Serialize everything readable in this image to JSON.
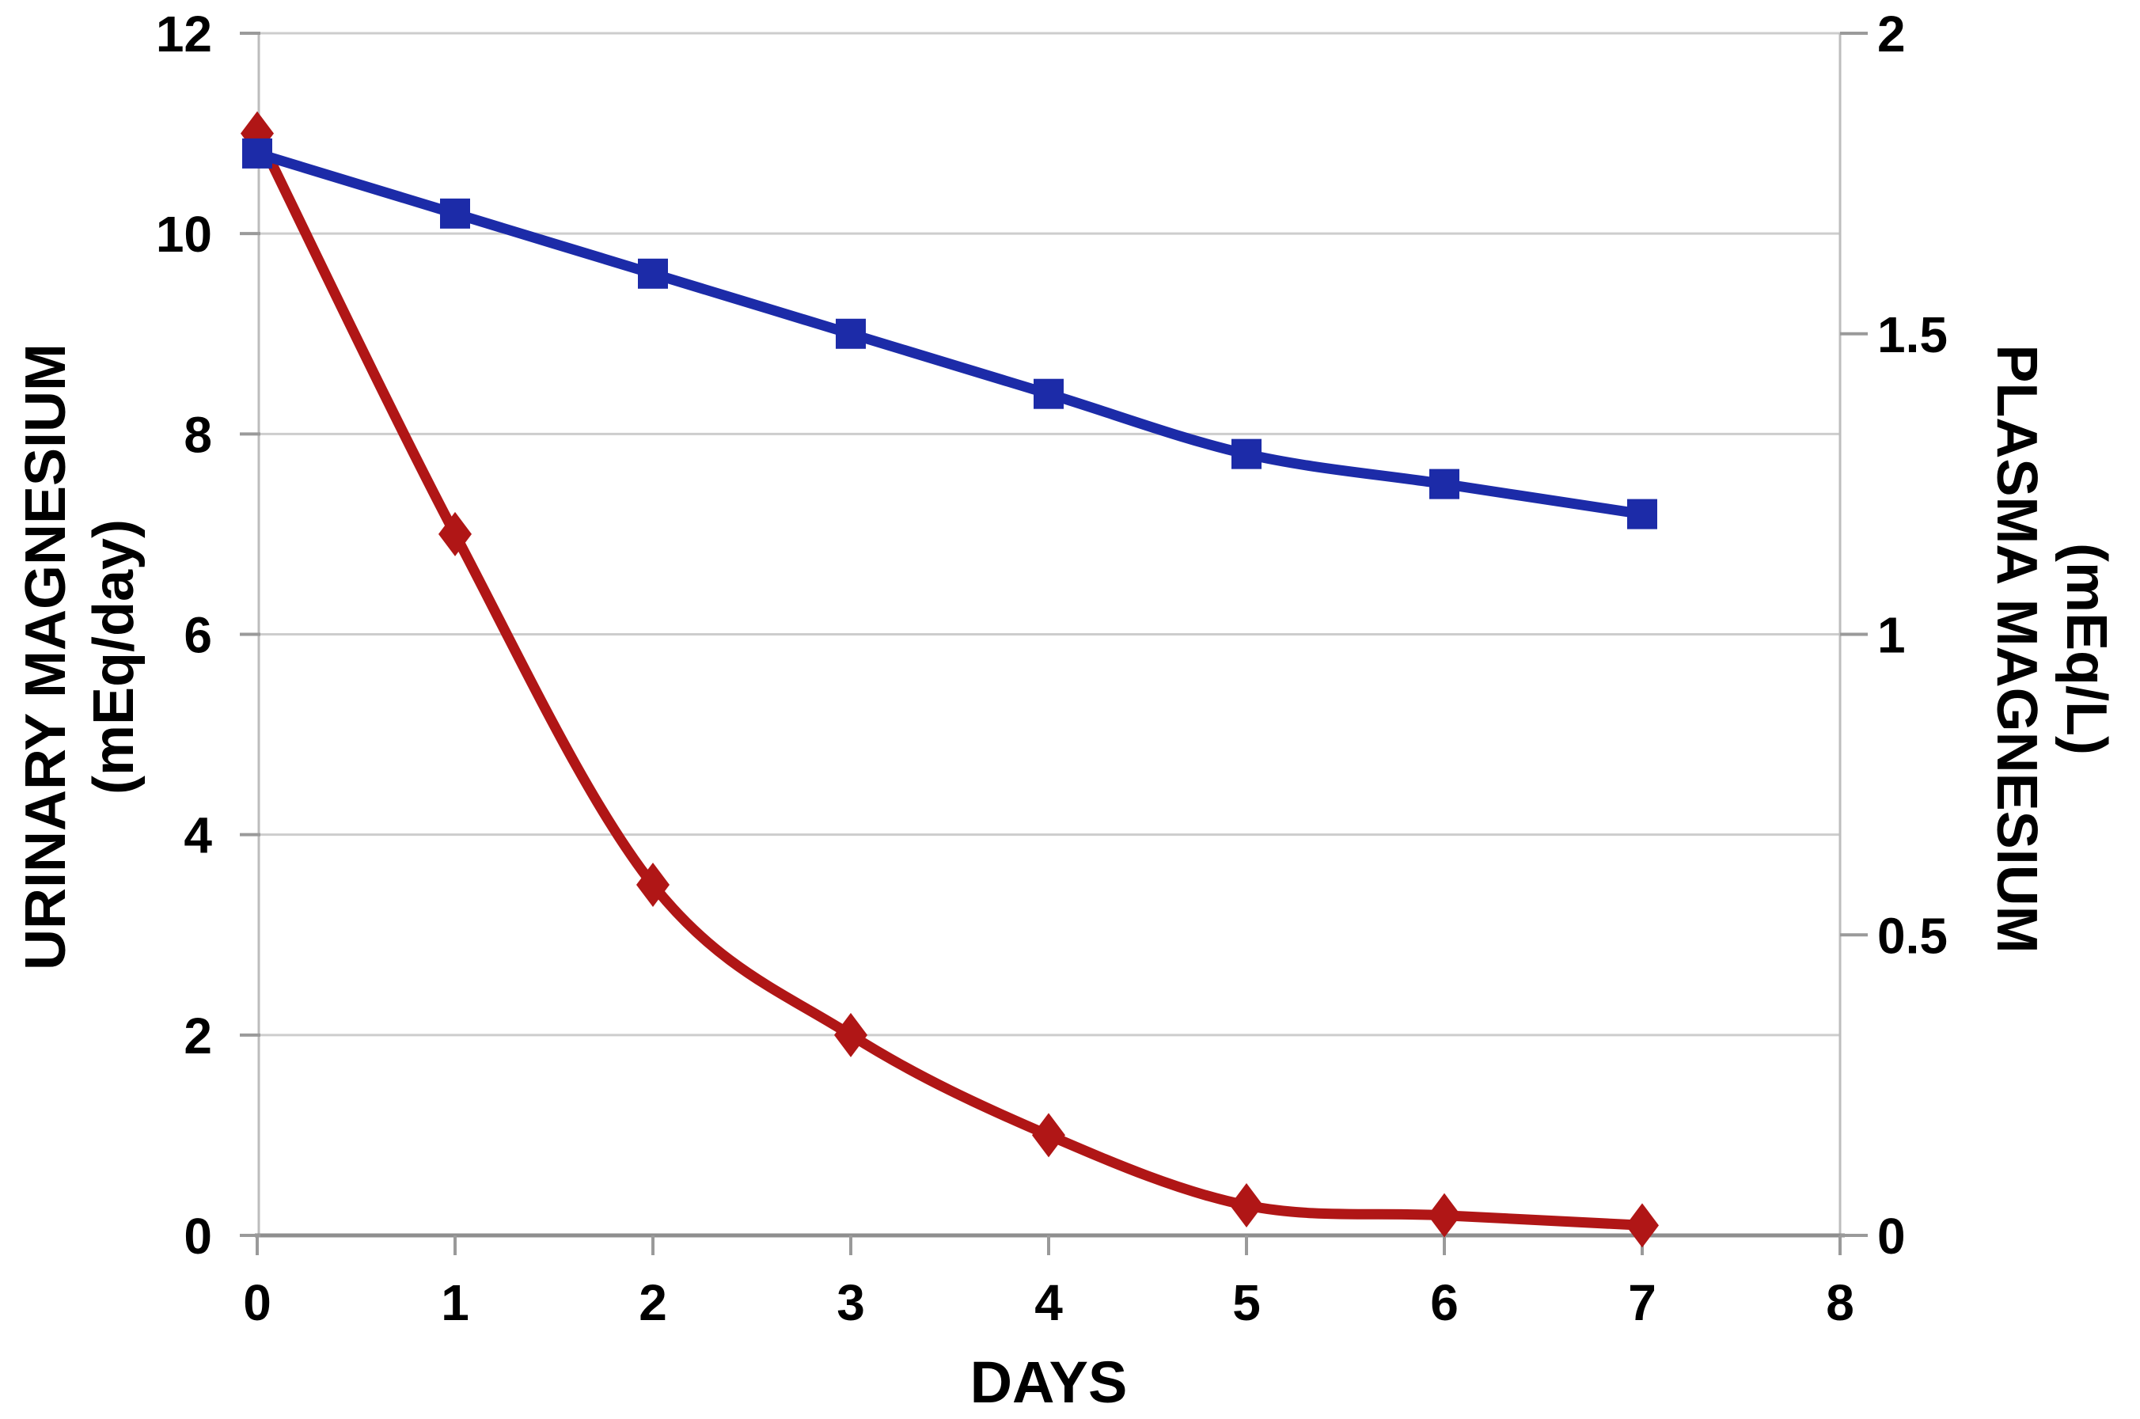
{
  "chart_data": {
    "type": "line",
    "xlabel": "DAYS",
    "x_ticks": [
      "0",
      "1",
      "2",
      "3",
      "4",
      "5",
      "6",
      "7",
      "8"
    ],
    "x_range": [
      0,
      8
    ],
    "grid": "horizontal-only",
    "legend": "none",
    "left_axis": {
      "title_line1": "URINARY MAGNESIUM",
      "title_line2": "(mEq/day)",
      "ticks": [
        "12",
        "10",
        "8",
        "6",
        "4",
        "2",
        "0"
      ],
      "range": [
        0,
        12
      ]
    },
    "right_axis": {
      "title_line1": "PLASMA MAGNESIUM",
      "title_line2": "(mEq/L)",
      "ticks": [
        "2",
        "1.5",
        "1",
        "0.5",
        "0"
      ],
      "range": [
        0,
        2
      ]
    },
    "gridline_values_left": [
      12,
      10,
      8,
      6,
      4,
      2
    ],
    "series": [
      {
        "name": "urinary-magnesium",
        "axis": "left",
        "marker": "diamond",
        "color": "#B01616",
        "x": [
          0,
          1,
          2,
          3,
          4,
          5,
          6,
          7
        ],
        "values": [
          11,
          7,
          3.5,
          2,
          1,
          0.3,
          0.2,
          0.1
        ]
      },
      {
        "name": "plasma-magnesium",
        "axis": "right",
        "marker": "square",
        "color": "#1C2BA8",
        "x": [
          0,
          1,
          2,
          3,
          4,
          5,
          6,
          7
        ],
        "values": [
          1.8,
          1.7,
          1.6,
          1.5,
          1.4,
          1.3,
          1.25,
          1.2
        ]
      }
    ],
    "colors": {
      "background": "#FFFFFF",
      "gridline": "#CDCDCD",
      "axis_line": "#BDBDBD",
      "x_axis_line": "#8E8E8E",
      "tick": "#9A9A9A",
      "text": "#000000"
    }
  }
}
